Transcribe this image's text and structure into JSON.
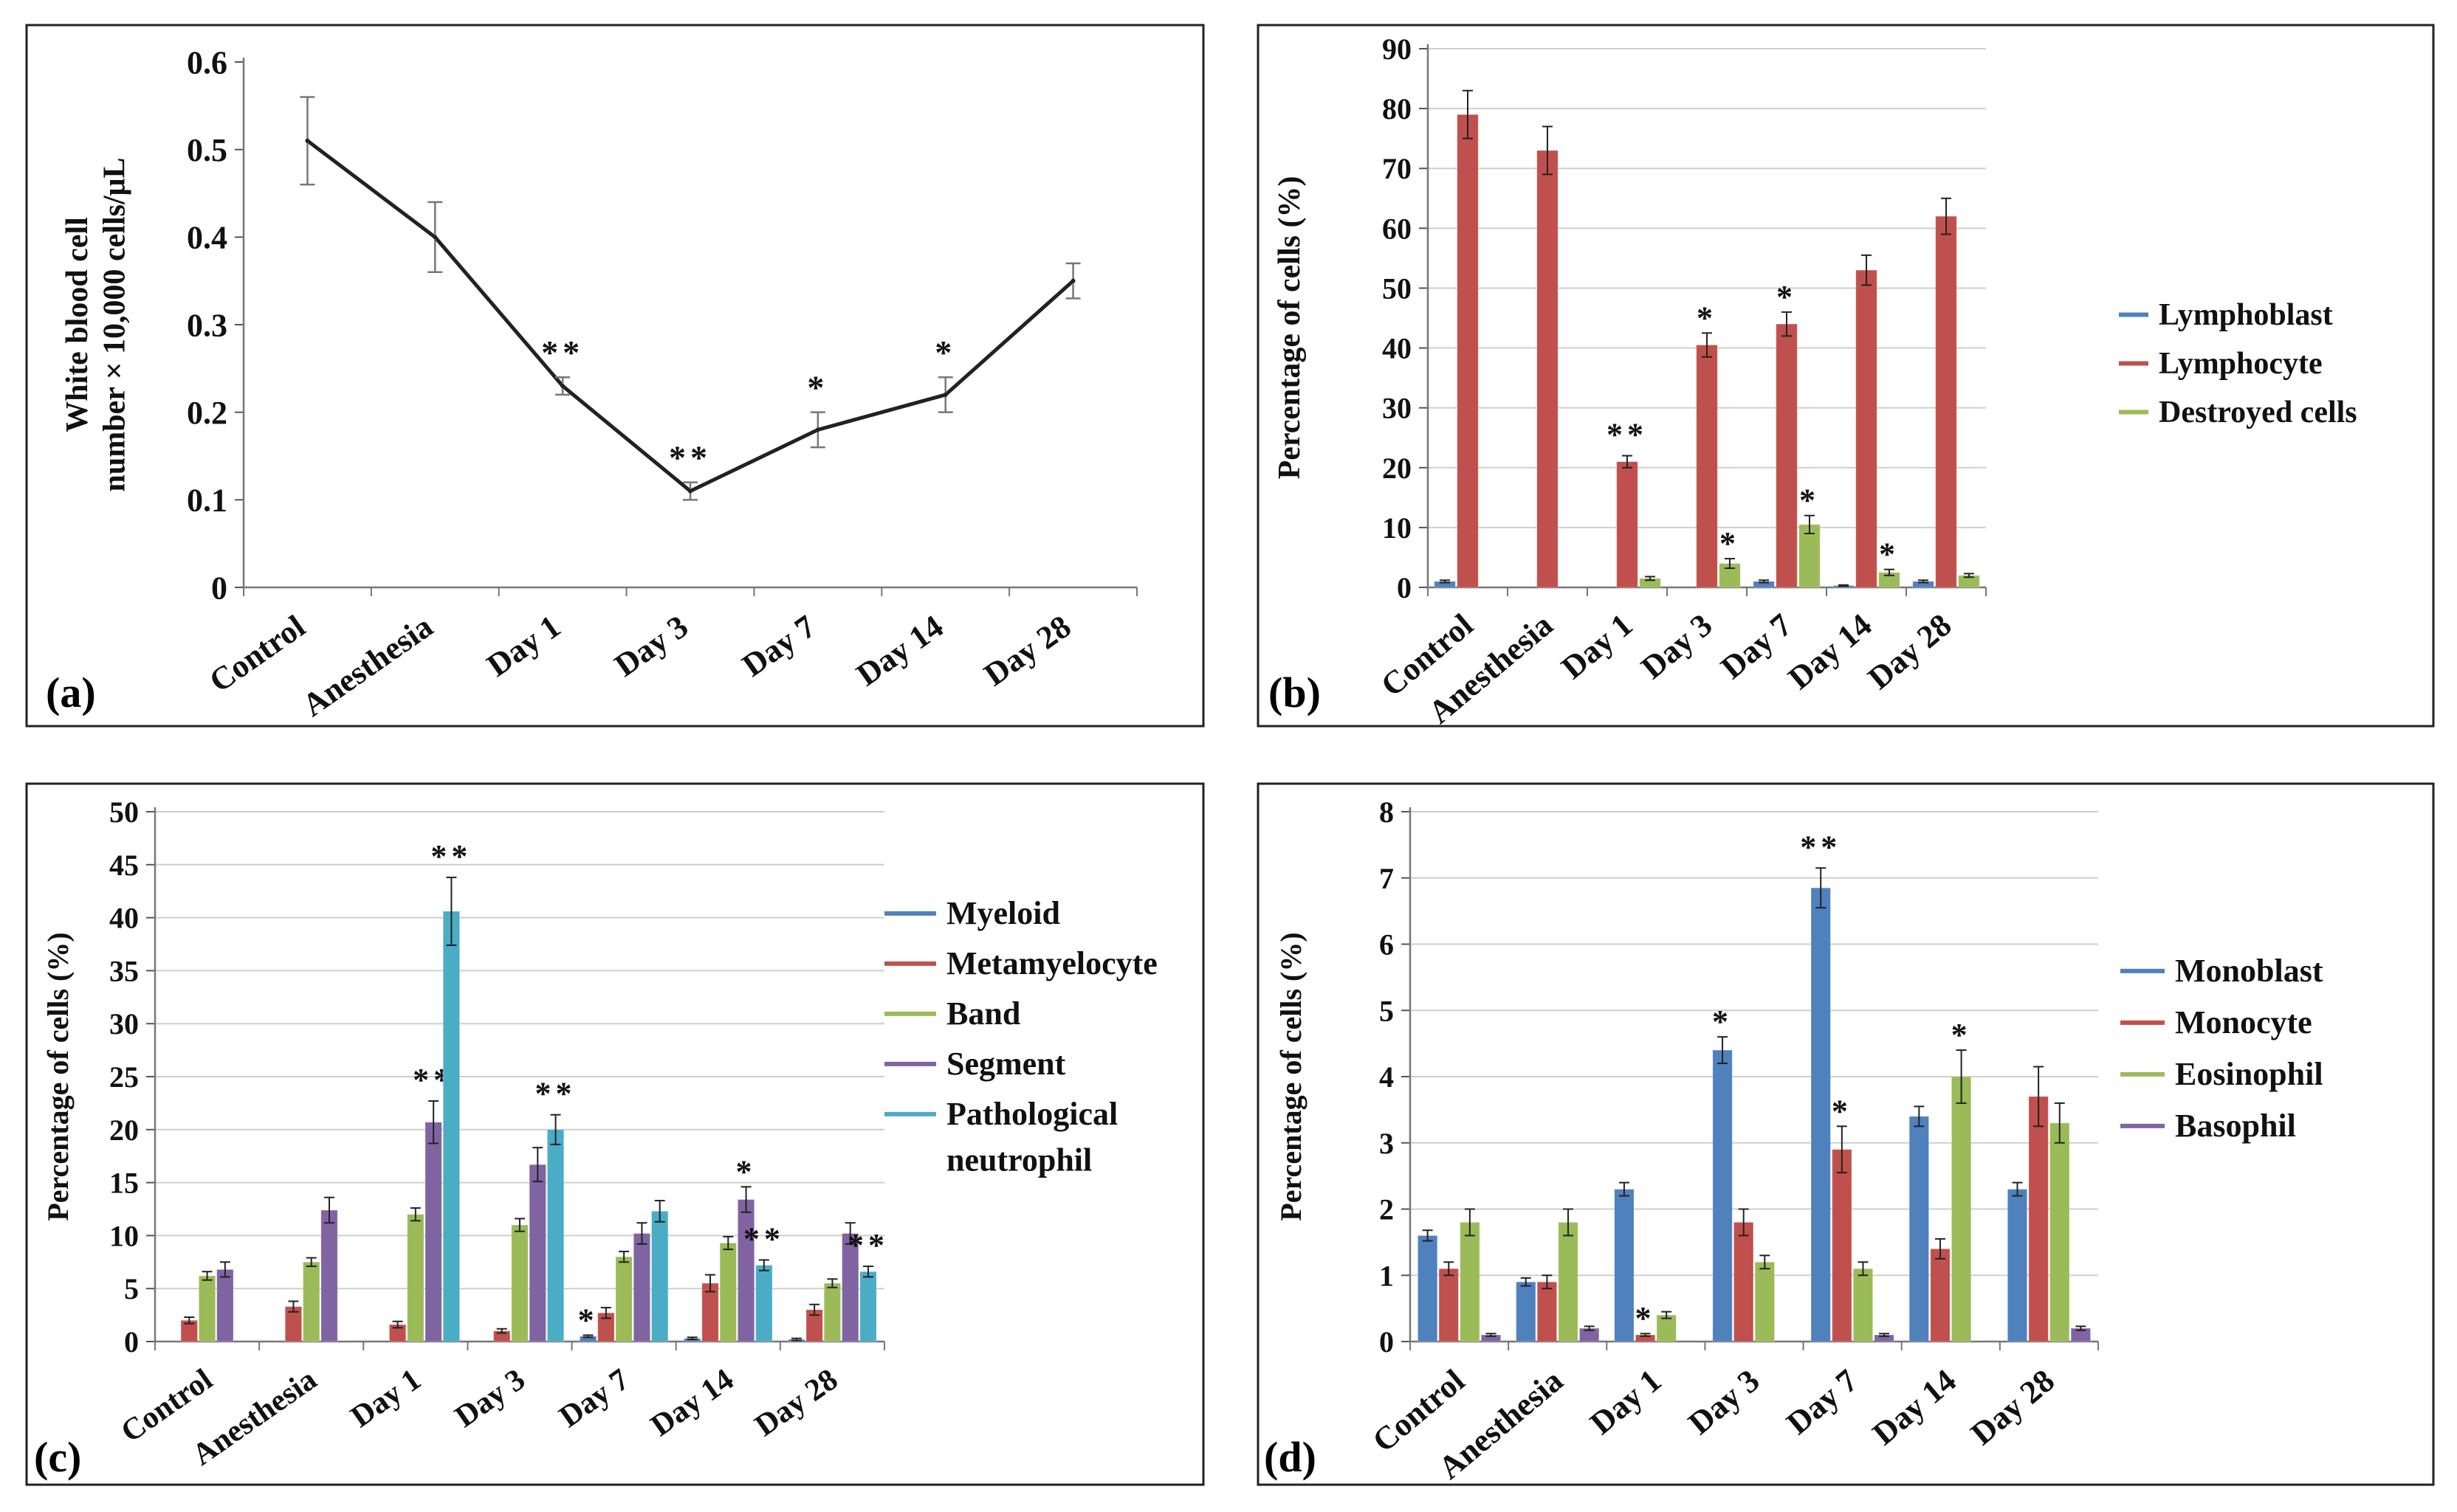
{
  "figure": {
    "panels": [
      {
        "label": "(a)"
      },
      {
        "label": "(b)"
      },
      {
        "label": "(c)"
      },
      {
        "label": "(d)"
      }
    ]
  },
  "chart_data": [
    {
      "id": "a",
      "type": "line",
      "panel_label": "(a)",
      "ylabel_lines": [
        "White blood cell",
        "number × 10,000 cells/μL"
      ],
      "xlabel": "",
      "ylim": [
        0,
        0.6
      ],
      "yticks": [
        0,
        0.1,
        0.2,
        0.3,
        0.4,
        0.5,
        0.6
      ],
      "ytick_labels": [
        "0",
        "0.1",
        "0.2",
        "0.3",
        "0.4",
        "0.5",
        "0.6"
      ],
      "grid": false,
      "categories": [
        "Control",
        "Anesthesia",
        "Day 1",
        "Day 3",
        "Day 7",
        "Day 14",
        "Day 28"
      ],
      "series": [
        {
          "name": "White blood cell",
          "color": "#222222",
          "values": [
            0.51,
            0.4,
            0.23,
            0.11,
            0.18,
            0.22,
            0.35
          ],
          "errors": [
            0.05,
            0.04,
            0.01,
            0.01,
            0.02,
            0.02,
            0.02
          ],
          "annotations": [
            "",
            "",
            "**",
            "**",
            "*",
            "*",
            ""
          ]
        }
      ]
    },
    {
      "id": "b",
      "type": "bar",
      "panel_label": "(b)",
      "ylabel": "Percentage of cells (%)",
      "ylim": [
        0,
        90
      ],
      "yticks": [
        0,
        10,
        20,
        30,
        40,
        50,
        60,
        70,
        80,
        90
      ],
      "ytick_labels": [
        "0",
        "10",
        "20",
        "30",
        "40",
        "50",
        "60",
        "70",
        "80",
        "90"
      ],
      "grid": true,
      "legend_position": "right",
      "categories": [
        "Control",
        "Anesthesia",
        "Day 1",
        "Day 3",
        "Day 7",
        "Day 14",
        "Day 28"
      ],
      "series": [
        {
          "name": "Lymphoblast",
          "color": "#4f81bd",
          "values": [
            1,
            0,
            0,
            0,
            1,
            0.3,
            1
          ],
          "errors": [
            0.2,
            0,
            0,
            0,
            0.2,
            0.1,
            0.2
          ],
          "annotations": [
            "",
            "",
            "",
            "",
            "",
            "",
            ""
          ]
        },
        {
          "name": "Lymphocyte",
          "color": "#c0504d",
          "values": [
            79,
            73,
            21,
            40.5,
            44,
            53,
            62
          ],
          "errors": [
            4,
            4,
            1,
            2,
            2,
            2.5,
            3
          ],
          "annotations": [
            "",
            "",
            "**",
            "*",
            "*",
            "",
            ""
          ]
        },
        {
          "name": "Destroyed cells",
          "color": "#9bbb59",
          "values": [
            0,
            0,
            1.5,
            4,
            10.5,
            2.5,
            2
          ],
          "errors": [
            0,
            0,
            0.3,
            0.8,
            1.5,
            0.5,
            0.3
          ],
          "annotations": [
            "",
            "",
            "",
            "*",
            "*",
            "*",
            ""
          ]
        }
      ]
    },
    {
      "id": "c",
      "type": "bar",
      "panel_label": "(c)",
      "ylabel": "Percentage of cells (%)",
      "ylim": [
        0,
        50
      ],
      "yticks": [
        0,
        5,
        10,
        15,
        20,
        25,
        30,
        35,
        40,
        45,
        50
      ],
      "ytick_labels": [
        "0",
        "5",
        "10",
        "15",
        "20",
        "25",
        "30",
        "35",
        "40",
        "45",
        "50"
      ],
      "grid": true,
      "legend_position": "right",
      "categories": [
        "Control",
        "Anesthesia",
        "Day 1",
        "Day 3",
        "Day 7",
        "Day 14",
        "Day 28"
      ],
      "series": [
        {
          "name": "Myeloid",
          "color": "#4f81bd",
          "values": [
            0,
            0,
            0,
            0,
            0.5,
            0.3,
            0.2
          ],
          "errors": [
            0,
            0,
            0,
            0,
            0.1,
            0.1,
            0.1
          ],
          "annotations": [
            "",
            "",
            "",
            "",
            "*",
            "",
            ""
          ]
        },
        {
          "name": "Metamyelocyte",
          "color": "#c0504d",
          "values": [
            2,
            3.3,
            1.6,
            1,
            2.7,
            5.5,
            3
          ],
          "errors": [
            0.3,
            0.5,
            0.3,
            0.2,
            0.5,
            0.8,
            0.5
          ],
          "annotations": [
            "",
            "",
            "",
            "",
            "",
            "",
            ""
          ]
        },
        {
          "name": "Band",
          "color": "#9bbb59",
          "values": [
            6.2,
            7.5,
            12,
            11,
            8,
            9.3,
            5.5
          ],
          "errors": [
            0.4,
            0.4,
            0.6,
            0.6,
            0.5,
            0.6,
            0.4
          ],
          "annotations": [
            "",
            "",
            "",
            "",
            "",
            "",
            ""
          ]
        },
        {
          "name": "Segment",
          "color": "#8064a2",
          "values": [
            6.8,
            12.4,
            20.7,
            16.7,
            10.2,
            13.4,
            10.2
          ],
          "errors": [
            0.7,
            1.2,
            2,
            1.6,
            1,
            1.2,
            1
          ],
          "annotations": [
            "",
            "",
            "**",
            "",
            "",
            "*",
            ""
          ]
        },
        {
          "name": "Pathological neutrophil",
          "color": "#4bacc6",
          "values": [
            0,
            0,
            40.6,
            20,
            12.3,
            7.2,
            6.6
          ],
          "errors": [
            0,
            0,
            3.2,
            1.4,
            1,
            0.5,
            0.5
          ],
          "annotations": [
            "",
            "",
            "**",
            "**",
            "",
            "**",
            "**"
          ]
        }
      ]
    },
    {
      "id": "d",
      "type": "bar",
      "panel_label": "(d)",
      "ylabel": "Percentage of cells (%)",
      "ylim": [
        0,
        8
      ],
      "yticks": [
        0,
        1,
        2,
        3,
        4,
        5,
        6,
        7,
        8
      ],
      "ytick_labels": [
        "0",
        "1",
        "2",
        "3",
        "4",
        "5",
        "6",
        "7",
        "8"
      ],
      "grid": true,
      "legend_position": "right",
      "categories": [
        "Control",
        "Anesthesia",
        "Day 1",
        "Day 3",
        "Day 7",
        "Day 14",
        "Day 28"
      ],
      "series": [
        {
          "name": "Monoblast",
          "color": "#4f81bd",
          "values": [
            1.6,
            0.9,
            2.3,
            4.4,
            6.85,
            3.4,
            2.3
          ],
          "errors": [
            0.08,
            0.06,
            0.1,
            0.2,
            0.3,
            0.15,
            0.1
          ],
          "annotations": [
            "",
            "",
            "",
            "*",
            "**",
            "",
            ""
          ]
        },
        {
          "name": "Monocyte",
          "color": "#c0504d",
          "values": [
            1.1,
            0.9,
            0.1,
            1.8,
            2.9,
            1.4,
            3.7
          ],
          "errors": [
            0.1,
            0.1,
            0.02,
            0.2,
            0.35,
            0.15,
            0.45
          ],
          "annotations": [
            "",
            "",
            "*",
            "",
            "*",
            "",
            ""
          ]
        },
        {
          "name": "Eosinophil",
          "color": "#9bbb59",
          "values": [
            1.8,
            1.8,
            0.4,
            1.2,
            1.1,
            4,
            3.3
          ],
          "errors": [
            0.2,
            0.2,
            0.05,
            0.1,
            0.1,
            0.4,
            0.3
          ],
          "annotations": [
            "",
            "",
            "",
            "",
            "",
            "*",
            ""
          ]
        },
        {
          "name": "Basophil",
          "color": "#8064a2",
          "values": [
            0.1,
            0.2,
            0,
            0,
            0.1,
            0,
            0.2
          ],
          "errors": [
            0.02,
            0.03,
            0,
            0,
            0.02,
            0,
            0.03
          ],
          "annotations": [
            "",
            "",
            "",
            "",
            "",
            "",
            ""
          ]
        }
      ]
    }
  ]
}
